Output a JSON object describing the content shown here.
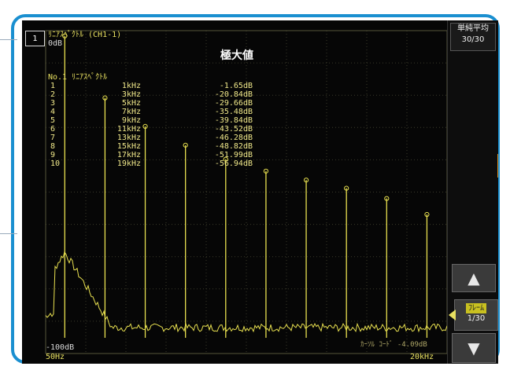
{
  "channel_number": "1",
  "graph": {
    "title": "ﾘﾆｱｽﾍﾟｸﾄﾙ (CH1-1)",
    "ref_top": "0dB",
    "ref_bottom": "-100dB",
    "peak_label": "極大値",
    "x_start": "50Hz",
    "x_end": "20kHz",
    "cursor_label": "ｶｰｿﾙ ｺｰﾄﾞ -4.09dB"
  },
  "table": {
    "header": "No.1 ﾘﾆｱｽﾍﾟｸﾄﾙ",
    "rows": [
      {
        "no": "1",
        "freq": "1kHz",
        "db": "-1.65dB"
      },
      {
        "no": "2",
        "freq": "3kHz",
        "db": "-20.84dB"
      },
      {
        "no": "3",
        "freq": "5kHz",
        "db": "-29.66dB"
      },
      {
        "no": "4",
        "freq": "7kHz",
        "db": "-35.48dB"
      },
      {
        "no": "5",
        "freq": "9kHz",
        "db": "-39.84dB"
      },
      {
        "no": "6",
        "freq": "11kHz",
        "db": "-43.52dB"
      },
      {
        "no": "7",
        "freq": "13kHz",
        "db": "-46.28dB"
      },
      {
        "no": "8",
        "freq": "15kHz",
        "db": "-48.82dB"
      },
      {
        "no": "9",
        "freq": "17kHz",
        "db": "-51.99dB"
      },
      {
        "no": "10",
        "freq": "19kHz",
        "db": "-56.94dB"
      }
    ]
  },
  "right_panel": {
    "averaging_label": "単純平均",
    "averaging_count": "30/30",
    "up_arrow": "▲",
    "down_arrow": "▼",
    "frame_label": "ﾌﾚｰﾑ",
    "frame_count": "1/30"
  },
  "colors": {
    "trace": "#e8e050",
    "grid": "#3a3a2a",
    "frame_accent": "#1a8fd0"
  }
}
